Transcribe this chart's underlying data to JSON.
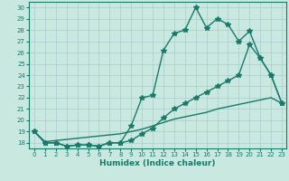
{
  "xlabel": "Humidex (Indice chaleur)",
  "bg_color": "#c8e8e0",
  "line_color": "#1a7a6a",
  "grid_color": "#aacccc",
  "xlim": [
    -0.5,
    23.4
  ],
  "ylim": [
    17.5,
    30.5
  ],
  "xticks": [
    0,
    1,
    2,
    3,
    4,
    5,
    6,
    7,
    8,
    9,
    10,
    11,
    12,
    13,
    14,
    15,
    16,
    17,
    18,
    19,
    20,
    21,
    22,
    23
  ],
  "yticks": [
    18,
    19,
    20,
    21,
    22,
    23,
    24,
    25,
    26,
    27,
    28,
    29,
    30
  ],
  "line1_x": [
    0,
    1,
    2,
    3,
    4,
    5,
    6,
    7,
    8,
    9,
    10,
    11,
    12,
    13,
    14,
    15,
    16,
    17,
    18,
    19,
    20,
    21,
    22,
    23
  ],
  "line1_y": [
    19,
    18,
    18,
    17.7,
    17.8,
    17.8,
    17.7,
    18,
    18,
    19.5,
    22,
    22.2,
    26.2,
    27.7,
    28,
    30,
    28.2,
    29,
    28.5,
    27,
    27.9,
    25.5,
    24,
    21.5
  ],
  "line2_x": [
    0,
    1,
    2,
    3,
    4,
    5,
    6,
    7,
    8,
    9,
    10,
    11,
    12,
    13,
    14,
    15,
    16,
    17,
    18,
    19,
    20,
    21,
    22,
    23
  ],
  "line2_y": [
    19,
    18,
    18,
    17.7,
    17.8,
    17.8,
    17.7,
    18,
    18,
    18.2,
    18.8,
    19.3,
    20.2,
    21.0,
    21.5,
    22.0,
    22.5,
    23.0,
    23.5,
    24.0,
    26.7,
    25.5,
    24.0,
    21.5
  ],
  "line3_x": [
    0,
    1,
    2,
    3,
    4,
    5,
    6,
    7,
    8,
    9,
    10,
    11,
    12,
    13,
    14,
    15,
    16,
    17,
    18,
    19,
    20,
    21,
    22,
    23
  ],
  "line3_y": [
    19,
    18.1,
    18.2,
    18.3,
    18.4,
    18.5,
    18.6,
    18.7,
    18.8,
    19.0,
    19.2,
    19.5,
    19.8,
    20.1,
    20.3,
    20.5,
    20.7,
    21.0,
    21.2,
    21.4,
    21.6,
    21.8,
    22.0,
    21.5
  ],
  "linewidth": 1.0,
  "markersize": 3
}
